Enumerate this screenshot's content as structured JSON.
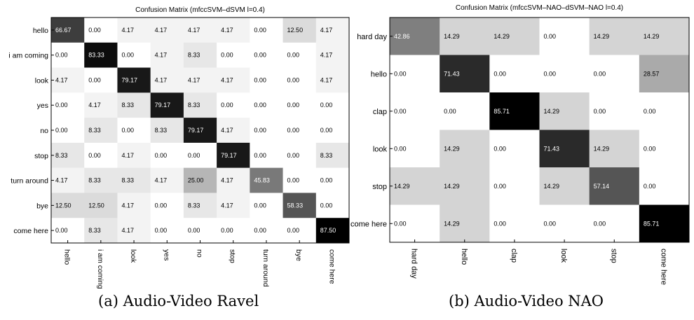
{
  "chart_data": [
    {
      "type": "heatmap",
      "title": "Confusion Matrix (mfccSVM–dSVM l=0.4)",
      "caption": "(a) Audio-Video Ravel",
      "row_labels": [
        "hello",
        "i am coming",
        "look",
        "yes",
        "no",
        "stop",
        "turn around",
        "bye",
        "come here"
      ],
      "col_labels": [
        "hello",
        "i am coming",
        "look",
        "yes",
        "no",
        "stop",
        "turn around",
        "bye",
        "come here"
      ],
      "values": [
        [
          66.67,
          0.0,
          4.17,
          4.17,
          4.17,
          4.17,
          0.0,
          12.5,
          4.17
        ],
        [
          0.0,
          83.33,
          0.0,
          4.17,
          8.33,
          0.0,
          0.0,
          0.0,
          4.17
        ],
        [
          4.17,
          0.0,
          79.17,
          4.17,
          4.17,
          4.17,
          0.0,
          0.0,
          4.17
        ],
        [
          0.0,
          4.17,
          8.33,
          79.17,
          8.33,
          0.0,
          0.0,
          0.0,
          0.0
        ],
        [
          0.0,
          8.33,
          0.0,
          8.33,
          79.17,
          4.17,
          0.0,
          0.0,
          0.0
        ],
        [
          8.33,
          0.0,
          4.17,
          0.0,
          0.0,
          79.17,
          0.0,
          0.0,
          8.33
        ],
        [
          4.17,
          8.33,
          8.33,
          4.17,
          25.0,
          4.17,
          45.83,
          0.0,
          0.0
        ],
        [
          12.5,
          12.5,
          4.17,
          0.0,
          8.33,
          4.17,
          0.0,
          58.33,
          0.0
        ],
        [
          0.0,
          8.33,
          4.17,
          0.0,
          0.0,
          0.0,
          0.0,
          0.0,
          87.5
        ]
      ],
      "scale": "grayscale (white = 0, black = max)"
    },
    {
      "type": "heatmap",
      "title": "Confusion Matrix (mfccSVM–NAO–dSVM–NAO l=0.4)",
      "caption": "(b) Audio-Video NAO",
      "row_labels": [
        "hard day",
        "hello",
        "clap",
        "look",
        "stop",
        "come here"
      ],
      "col_labels": [
        "hard day",
        "hello",
        "clap",
        "look",
        "stop",
        "come here"
      ],
      "values": [
        [
          42.86,
          14.29,
          14.29,
          0.0,
          14.29,
          14.29
        ],
        [
          0.0,
          71.43,
          0.0,
          0.0,
          0.0,
          28.57
        ],
        [
          0.0,
          0.0,
          85.71,
          14.29,
          0.0,
          0.0
        ],
        [
          0.0,
          14.29,
          0.0,
          71.43,
          14.29,
          0.0
        ],
        [
          14.29,
          14.29,
          0.0,
          14.29,
          57.14,
          0.0
        ],
        [
          0.0,
          14.29,
          0.0,
          0.0,
          0.0,
          85.71
        ]
      ],
      "scale": "grayscale (white = 0, black = max)"
    }
  ]
}
